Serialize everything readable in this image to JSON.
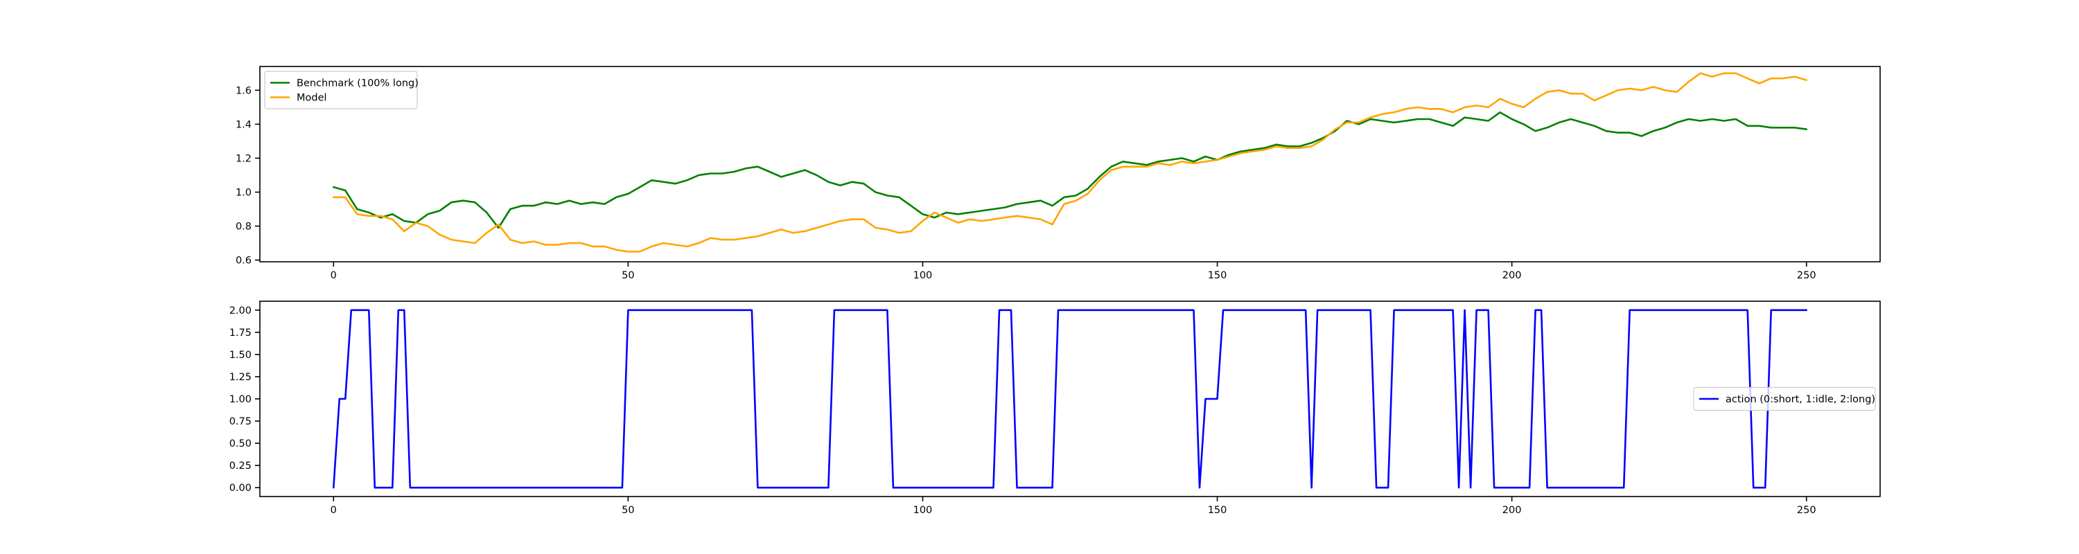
{
  "chart_data": [
    {
      "type": "line",
      "title": "",
      "xlabel": "",
      "ylabel": "",
      "xlim": [
        -12.5,
        262.5
      ],
      "ylim": [
        0.59,
        1.74
      ],
      "xticks": [
        0,
        50,
        100,
        150,
        200,
        250
      ],
      "yticks": [
        0.6,
        0.8,
        1.0,
        1.2,
        1.4,
        1.6
      ],
      "ytick_labels": [
        "0.6",
        "0.8",
        "1.0",
        "1.2",
        "1.4",
        "1.6"
      ],
      "legend": {
        "position": "upper-left"
      },
      "grid": false,
      "series": [
        {
          "name": "Benchmark (100% long)",
          "color": "#008000",
          "x": [
            0,
            2,
            4,
            6,
            8,
            10,
            12,
            14,
            16,
            18,
            20,
            22,
            24,
            26,
            28,
            30,
            32,
            34,
            36,
            38,
            40,
            42,
            44,
            46,
            48,
            50,
            52,
            54,
            56,
            58,
            60,
            62,
            64,
            66,
            68,
            70,
            72,
            74,
            76,
            78,
            80,
            82,
            84,
            86,
            88,
            90,
            92,
            94,
            96,
            98,
            100,
            102,
            104,
            106,
            108,
            110,
            112,
            114,
            116,
            118,
            120,
            122,
            124,
            126,
            128,
            130,
            132,
            134,
            136,
            138,
            140,
            142,
            144,
            146,
            148,
            150,
            152,
            154,
            156,
            158,
            160,
            162,
            164,
            166,
            168,
            170,
            172,
            174,
            176,
            178,
            180,
            182,
            184,
            186,
            188,
            190,
            192,
            194,
            196,
            198,
            200,
            202,
            204,
            206,
            208,
            210,
            212,
            214,
            216,
            218,
            220,
            222,
            224,
            226,
            228,
            230,
            232,
            234,
            236,
            238,
            240,
            242,
            244,
            246,
            248,
            250
          ],
          "values": [
            1.03,
            1.01,
            0.9,
            0.88,
            0.85,
            0.87,
            0.83,
            0.82,
            0.87,
            0.89,
            0.94,
            0.95,
            0.94,
            0.88,
            0.79,
            0.9,
            0.92,
            0.92,
            0.94,
            0.93,
            0.95,
            0.93,
            0.94,
            0.93,
            0.97,
            0.99,
            1.03,
            1.07,
            1.06,
            1.05,
            1.07,
            1.1,
            1.11,
            1.11,
            1.12,
            1.14,
            1.15,
            1.12,
            1.09,
            1.11,
            1.13,
            1.1,
            1.06,
            1.04,
            1.06,
            1.05,
            1.0,
            0.98,
            0.97,
            0.92,
            0.87,
            0.85,
            0.88,
            0.87,
            0.88,
            0.89,
            0.9,
            0.91,
            0.93,
            0.94,
            0.95,
            0.92,
            0.97,
            0.98,
            1.02,
            1.09,
            1.15,
            1.18,
            1.17,
            1.16,
            1.18,
            1.19,
            1.2,
            1.18,
            1.21,
            1.19,
            1.22,
            1.24,
            1.25,
            1.26,
            1.28,
            1.27,
            1.27,
            1.29,
            1.32,
            1.36,
            1.42,
            1.4,
            1.43,
            1.42,
            1.41,
            1.42,
            1.43,
            1.43,
            1.41,
            1.39,
            1.44,
            1.43,
            1.42,
            1.47,
            1.43,
            1.4,
            1.36,
            1.38,
            1.41,
            1.43,
            1.41,
            1.39,
            1.36,
            1.35,
            1.35,
            1.33,
            1.36,
            1.38,
            1.41,
            1.43,
            1.42,
            1.43,
            1.42,
            1.43,
            1.39,
            1.39,
            1.38,
            1.38,
            1.38,
            1.37
          ]
        },
        {
          "name": "Model",
          "color": "#FFA500",
          "x": [
            0,
            2,
            4,
            6,
            8,
            10,
            12,
            14,
            16,
            18,
            20,
            22,
            24,
            26,
            28,
            30,
            32,
            34,
            36,
            38,
            40,
            42,
            44,
            46,
            48,
            50,
            52,
            54,
            56,
            58,
            60,
            62,
            64,
            66,
            68,
            70,
            72,
            74,
            76,
            78,
            80,
            82,
            84,
            86,
            88,
            90,
            92,
            94,
            96,
            98,
            100,
            102,
            104,
            106,
            108,
            110,
            112,
            114,
            116,
            118,
            120,
            122,
            124,
            126,
            128,
            130,
            132,
            134,
            136,
            138,
            140,
            142,
            144,
            146,
            148,
            150,
            152,
            154,
            156,
            158,
            160,
            162,
            164,
            166,
            168,
            170,
            172,
            174,
            176,
            178,
            180,
            182,
            184,
            186,
            188,
            190,
            192,
            194,
            196,
            198,
            200,
            202,
            204,
            206,
            208,
            210,
            212,
            214,
            216,
            218,
            220,
            222,
            224,
            226,
            228,
            230,
            232,
            234,
            236,
            238,
            240,
            242,
            244,
            246,
            248,
            250
          ],
          "values": [
            0.97,
            0.97,
            0.87,
            0.86,
            0.86,
            0.84,
            0.77,
            0.82,
            0.8,
            0.75,
            0.72,
            0.71,
            0.7,
            0.76,
            0.81,
            0.72,
            0.7,
            0.71,
            0.69,
            0.69,
            0.7,
            0.7,
            0.68,
            0.68,
            0.66,
            0.65,
            0.65,
            0.68,
            0.7,
            0.69,
            0.68,
            0.7,
            0.73,
            0.72,
            0.72,
            0.73,
            0.74,
            0.76,
            0.78,
            0.76,
            0.77,
            0.79,
            0.81,
            0.83,
            0.84,
            0.84,
            0.79,
            0.78,
            0.76,
            0.77,
            0.83,
            0.88,
            0.85,
            0.82,
            0.84,
            0.83,
            0.84,
            0.85,
            0.86,
            0.85,
            0.84,
            0.81,
            0.93,
            0.95,
            0.99,
            1.07,
            1.13,
            1.15,
            1.15,
            1.15,
            1.17,
            1.16,
            1.18,
            1.17,
            1.18,
            1.19,
            1.21,
            1.23,
            1.24,
            1.25,
            1.27,
            1.26,
            1.26,
            1.27,
            1.31,
            1.37,
            1.41,
            1.41,
            1.44,
            1.46,
            1.47,
            1.49,
            1.5,
            1.49,
            1.49,
            1.47,
            1.5,
            1.51,
            1.5,
            1.55,
            1.52,
            1.5,
            1.55,
            1.59,
            1.6,
            1.58,
            1.58,
            1.54,
            1.57,
            1.6,
            1.61,
            1.6,
            1.62,
            1.6,
            1.59,
            1.65,
            1.7,
            1.68,
            1.7,
            1.7,
            1.67,
            1.64,
            1.67,
            1.67,
            1.68,
            1.66
          ]
        }
      ]
    },
    {
      "type": "line",
      "title": "",
      "xlabel": "",
      "ylabel": "",
      "xlim": [
        -12.5,
        262.5
      ],
      "ylim": [
        -0.1,
        2.1
      ],
      "xticks": [
        0,
        50,
        100,
        150,
        200,
        250
      ],
      "yticks": [
        0,
        0.25,
        0.5,
        0.75,
        1.0,
        1.25,
        1.5,
        1.75,
        2.0
      ],
      "ytick_labels": [
        "0.00",
        "0.25",
        "0.50",
        "0.75",
        "1.00",
        "1.25",
        "1.50",
        "1.75",
        "2.00"
      ],
      "legend": {
        "position": "center-right"
      },
      "grid": false,
      "series": [
        {
          "name": "action (0:short, 1:idle, 2:long)",
          "color": "#0000FF",
          "x": [
            0,
            1,
            2,
            3,
            6,
            7,
            10,
            11,
            12,
            13,
            49,
            50,
            71,
            72,
            84,
            85,
            94,
            95,
            112,
            113,
            115,
            116,
            122,
            123,
            146,
            147,
            148,
            150,
            151,
            165,
            166,
            167,
            176,
            177,
            179,
            180,
            190,
            191,
            192,
            193,
            194,
            196,
            197,
            203,
            204,
            205,
            206,
            207,
            219,
            220,
            240,
            241,
            243,
            244,
            250
          ],
          "values": [
            0,
            1,
            1,
            2,
            2,
            0,
            0,
            2,
            2,
            0,
            0,
            2,
            2,
            0,
            0,
            2,
            2,
            0,
            0,
            2,
            2,
            0,
            0,
            2,
            2,
            0,
            1,
            1,
            2,
            2,
            0,
            2,
            2,
            0,
            0,
            2,
            2,
            0,
            2,
            0,
            2,
            2,
            0,
            0,
            2,
            2,
            0,
            0,
            0,
            2,
            2,
            0,
            0,
            2,
            2
          ]
        }
      ]
    }
  ]
}
